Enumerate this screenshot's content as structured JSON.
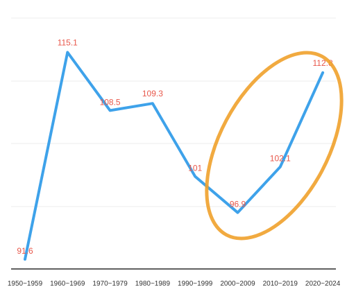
{
  "chart_data": {
    "type": "line",
    "categories": [
      "1950~1959",
      "1960~1969",
      "1970~1979",
      "1980~1989",
      "1990~1999",
      "2000~2009",
      "2010~2019",
      "2020~2024"
    ],
    "values": [
      91.6,
      115.1,
      108.5,
      109.3,
      101,
      96.9,
      102.1,
      112.8
    ],
    "data_labels": [
      "91.6",
      "115.1",
      "108.5",
      "109.3",
      "101",
      "96.9",
      "102.1",
      "112.8"
    ],
    "title": "",
    "xlabel": "",
    "ylabel": "",
    "ylim": [
      90.5,
      119
    ],
    "grid": true,
    "legend": "none",
    "highlighted_categories": [
      "2000~2009",
      "2010~2019",
      "2020~2024"
    ],
    "colors": {
      "line": "#3ea2ea",
      "data_label": "#e8574a",
      "highlight": "#f0a12b",
      "axis": "#2b2b2b",
      "grid": "#ececec"
    }
  }
}
